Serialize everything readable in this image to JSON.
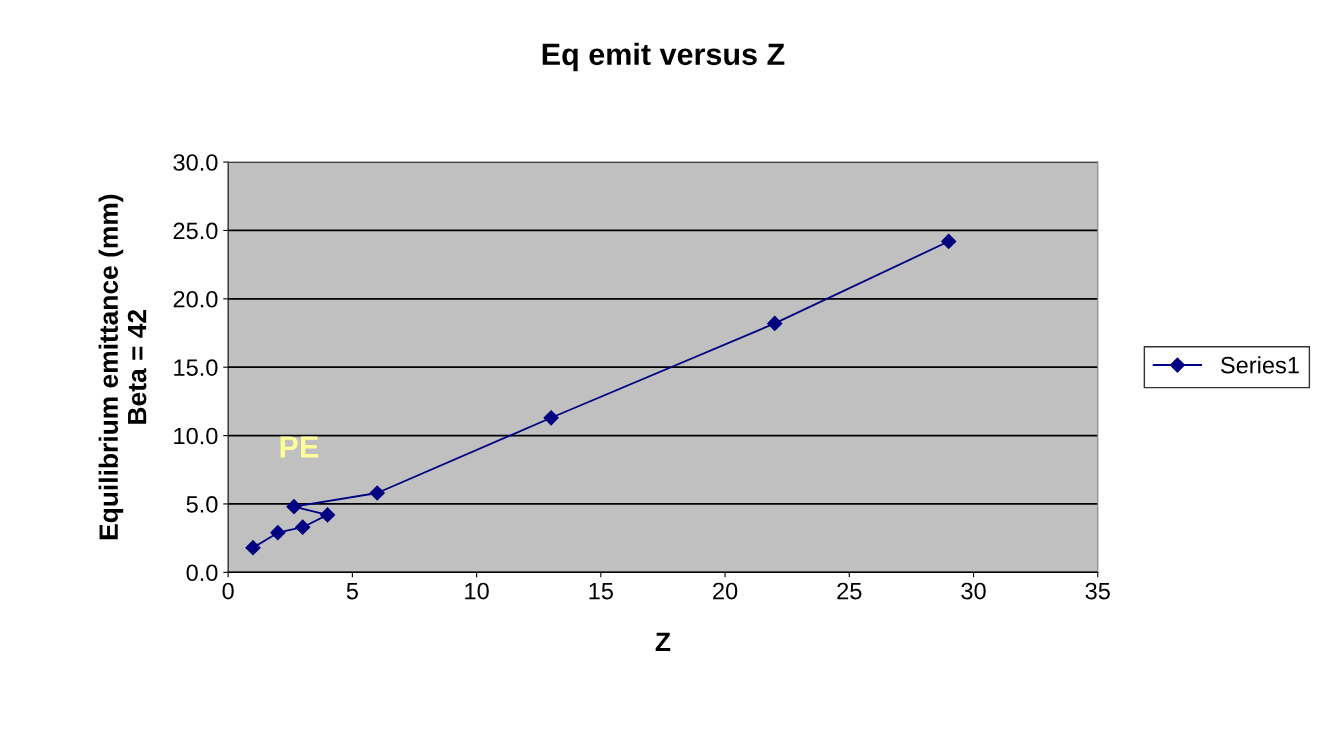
{
  "chart_data": {
    "type": "line",
    "title": "Eq emit versus Z",
    "xlabel": "Z",
    "ylabel": "Equilibrium emittance (mm)\nBeta = 42",
    "annotations": [
      "PE"
    ],
    "series": [
      {
        "name": "Series1",
        "color": "#000080",
        "x": [
          1,
          2,
          3,
          4,
          2.65,
          6,
          13,
          22,
          29
        ],
        "values": [
          1.8,
          2.9,
          3.3,
          4.2,
          4.8,
          5.8,
          11.3,
          18.2,
          24.2
        ]
      }
    ],
    "xlim": [
      0,
      35
    ],
    "xticks": [
      0,
      5,
      10,
      15,
      20,
      25,
      30,
      35
    ],
    "ylim": [
      0,
      30
    ],
    "yticks": [
      {
        "value": 0,
        "label": "0.0"
      },
      {
        "value": 5,
        "label": "5.0"
      },
      {
        "value": 10,
        "label": "10.0"
      },
      {
        "value": 15,
        "label": "15.0"
      },
      {
        "value": 20,
        "label": "20.0"
      },
      {
        "value": 25,
        "label": "25.0"
      },
      {
        "value": 30,
        "label": "30.0"
      }
    ],
    "grid": "y",
    "legend": "right",
    "marker": "diamond",
    "line_style": "solid"
  }
}
